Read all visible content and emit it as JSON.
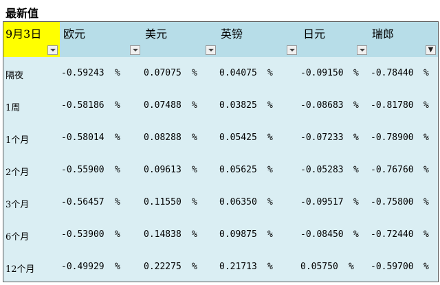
{
  "title": "最新值",
  "header": {
    "date": "9月3日",
    "columns": [
      "欧元",
      "美元",
      "英镑",
      "日元",
      "瑞郎"
    ],
    "filter_active_column": "瑞郎"
  },
  "colors": {
    "date_header_bg": "#ffff00",
    "header_bg": "#b7dde8",
    "body_bg": "#daeef3"
  },
  "unit": "%",
  "rows": [
    {
      "label": "隔夜",
      "values": [
        "-0.59243",
        "0.07075",
        "0.04075",
        "-0.09150",
        "-0.78440"
      ]
    },
    {
      "label": "1周",
      "values": [
        "-0.58186",
        "0.07488",
        "0.03825",
        "-0.08683",
        "-0.81780"
      ]
    },
    {
      "label": "1个月",
      "values": [
        "-0.58014",
        "0.08288",
        "0.05425",
        "-0.07233",
        "-0.78900"
      ]
    },
    {
      "label": "2个月",
      "values": [
        "-0.55900",
        "0.09613",
        "0.05625",
        "-0.05283",
        "-0.76760"
      ]
    },
    {
      "label": "3个月",
      "values": [
        "-0.56457",
        "0.11550",
        "0.06350",
        "-0.09517",
        "-0.75800"
      ]
    },
    {
      "label": "6个月",
      "values": [
        "-0.53900",
        "0.14838",
        "0.09875",
        "-0.08450",
        "-0.72440"
      ]
    },
    {
      "label": "12个月",
      "values": [
        "-0.49929",
        "0.22275",
        "0.21713",
        "0.05750",
        "-0.59700"
      ]
    }
  ]
}
